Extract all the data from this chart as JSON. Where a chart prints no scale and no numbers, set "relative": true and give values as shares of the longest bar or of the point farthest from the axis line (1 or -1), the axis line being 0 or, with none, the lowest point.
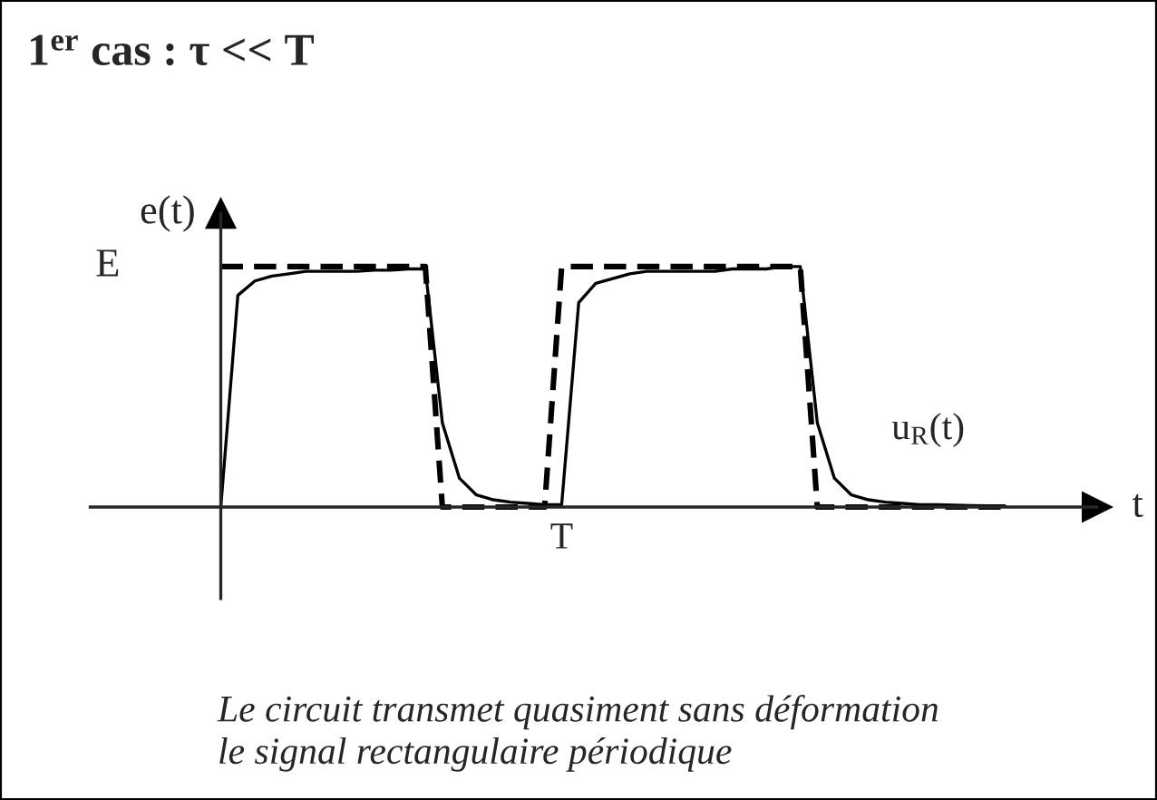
{
  "chart_data": {
    "type": "line",
    "title": "1$^{er}$ cas : τ << T",
    "ylabel": "e(t)",
    "xlabel": "t",
    "relative": true,
    "categories": [
      null,
      null,
      null,
      null,
      null,
      null,
      null,
      null,
      null,
      null,
      null,
      null,
      null,
      null,
      null,
      null,
      null,
      null,
      null,
      null,
      null,
      null,
      null,
      null,
      null,
      null,
      null,
      null,
      null,
      null,
      null,
      null,
      null,
      null,
      null,
      null,
      null,
      null,
      null,
      null,
      null,
      null,
      null,
      null,
      null,
      null,
      null
    ],
    "series": [
      {
        "color": "#000000",
        "line_style": "dashed",
        "values": [
          1,
          1,
          1,
          1,
          1,
          1,
          1,
          1,
          1,
          1,
          1,
          1,
          1,
          0,
          0,
          0,
          0,
          0,
          0,
          0,
          1,
          1,
          1,
          1,
          1,
          1,
          1,
          1,
          1,
          1,
          1,
          1,
          1,
          1,
          1,
          0,
          0,
          0,
          0,
          0,
          0,
          0,
          0,
          0,
          0,
          0,
          0
        ]
      },
      {
        "name": "u$_{R}$(t)",
        "color": "#000000",
        "line_style": "solid",
        "values": [
          0,
          0.88,
          0.94,
          0.96,
          0.97,
          0.98,
          0.98,
          0.98,
          0.98,
          0.985,
          0.985,
          0.99,
          0.99,
          0.35,
          0.12,
          0.05,
          0.03,
          0.02,
          0.015,
          0.01,
          0.01,
          0.85,
          0.93,
          0.95,
          0.97,
          0.98,
          0.98,
          0.98,
          0.98,
          0.98,
          0.99,
          0.99,
          0.99,
          1,
          1,
          0.35,
          0.12,
          0.05,
          0.03,
          0.02,
          0.015,
          0.01,
          0.01,
          0.008,
          0.006,
          0.005,
          0.005
        ]
      }
    ],
    "annotations": [
      "E",
      "T",
      "Le circuit transmet quasiment sans déformation\nle signal rectangulaire périodique"
    ]
  }
}
